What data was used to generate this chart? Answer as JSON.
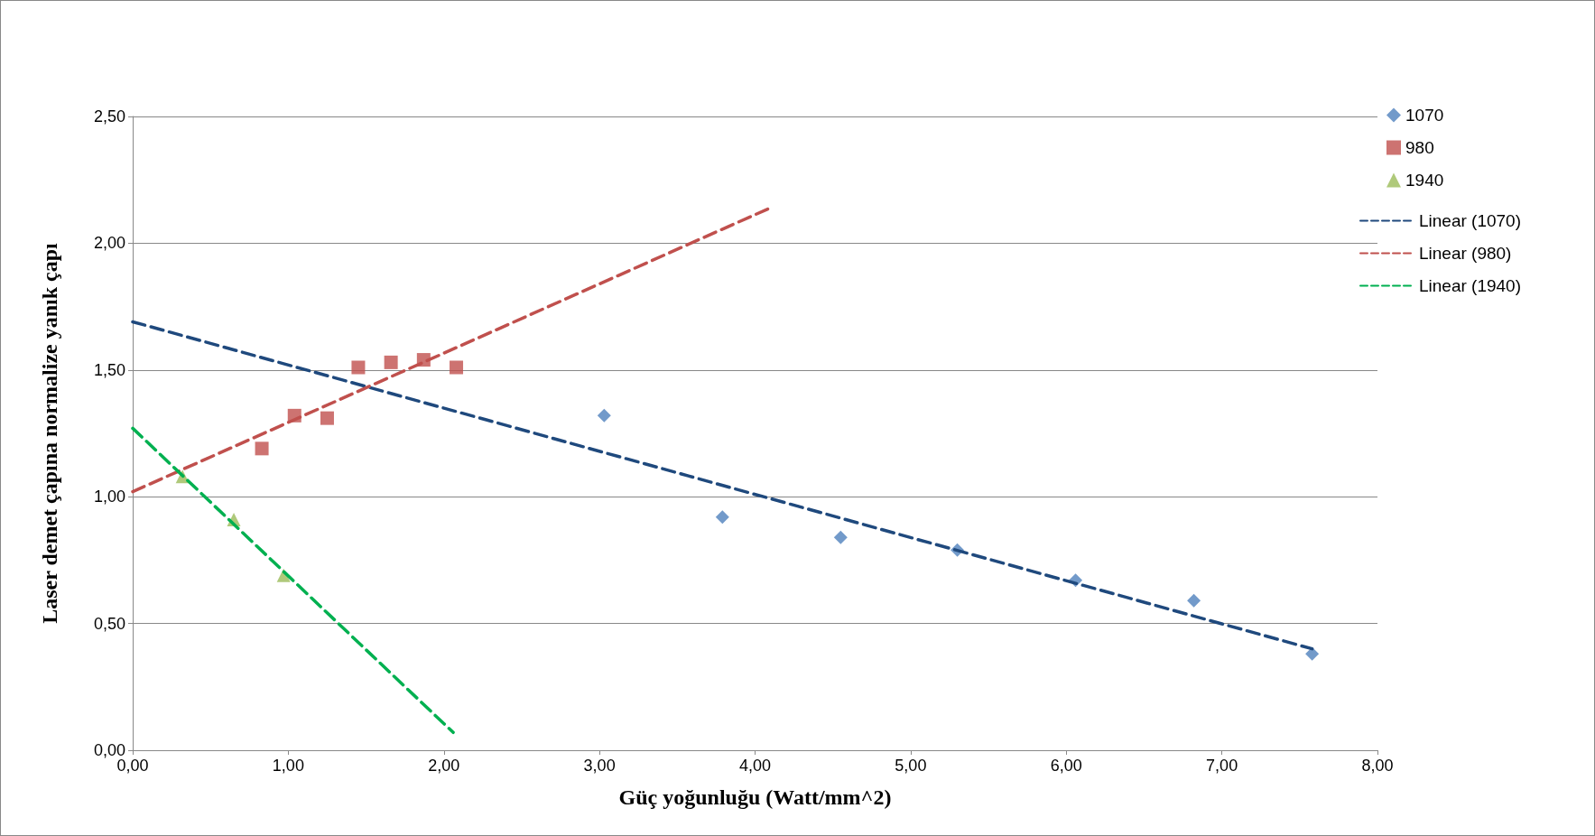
{
  "chart_data": {
    "type": "scatter",
    "xlabel": "Güç yoğunluğu (Watt/mm^2)",
    "ylabel": "Laser demet çapına normalize yanık çapı",
    "xlim": [
      0,
      8
    ],
    "ylim": [
      0,
      2.5
    ],
    "xticks": [
      {
        "value": 0,
        "label": "0,00"
      },
      {
        "value": 1,
        "label": "1,00"
      },
      {
        "value": 2,
        "label": "2,00"
      },
      {
        "value": 3,
        "label": "3,00"
      },
      {
        "value": 4,
        "label": "4,00"
      },
      {
        "value": 5,
        "label": "5,00"
      },
      {
        "value": 6,
        "label": "6,00"
      },
      {
        "value": 7,
        "label": "7,00"
      },
      {
        "value": 8,
        "label": "8,00"
      }
    ],
    "yticks": [
      {
        "value": 0,
        "label": "0,00"
      },
      {
        "value": 0.5,
        "label": "0,50"
      },
      {
        "value": 1,
        "label": "1,00"
      },
      {
        "value": 1.5,
        "label": "1,50"
      },
      {
        "value": 2,
        "label": "2,00"
      },
      {
        "value": 2.5,
        "label": "2,50"
      }
    ],
    "grid": "y",
    "legend": "right",
    "series": [
      {
        "name": "1070",
        "marker": "diamond",
        "color": "#4f81bd",
        "x": [
          3.03,
          3.79,
          4.55,
          5.3,
          6.06,
          6.82,
          7.58
        ],
        "values": [
          1.32,
          0.92,
          0.84,
          0.79,
          0.67,
          0.59,
          0.38
        ]
      },
      {
        "name": "980",
        "marker": "square",
        "color": "#c0504d",
        "x": [
          0.83,
          1.04,
          1.25,
          1.45,
          1.66,
          1.87,
          2.08
        ],
        "values": [
          1.19,
          1.32,
          1.31,
          1.51,
          1.53,
          1.54,
          1.51
        ]
      },
      {
        "name": "1940",
        "marker": "triangle",
        "color": "#9bbb59",
        "x": [
          0.32,
          0.65,
          0.97
        ],
        "values": [
          1.08,
          0.91,
          0.69
        ]
      },
      {
        "name": "Linear (1070)",
        "type": "line",
        "marker": "none",
        "line_style": "dashed",
        "color": "#1f497d",
        "x": [
          0,
          7.58
        ],
        "values": [
          1.69,
          0.4
        ]
      },
      {
        "name": "Linear (980)",
        "type": "line",
        "marker": "none",
        "line_style": "dashed",
        "color": "#c0504d",
        "x": [
          0,
          4.1
        ],
        "values": [
          1.02,
          2.14
        ]
      },
      {
        "name": "Linear (1940)",
        "type": "line",
        "marker": "none",
        "line_style": "dashed",
        "color": "#00b050",
        "x": [
          0,
          2.06
        ],
        "values": [
          1.27,
          0.07
        ]
      }
    ]
  }
}
